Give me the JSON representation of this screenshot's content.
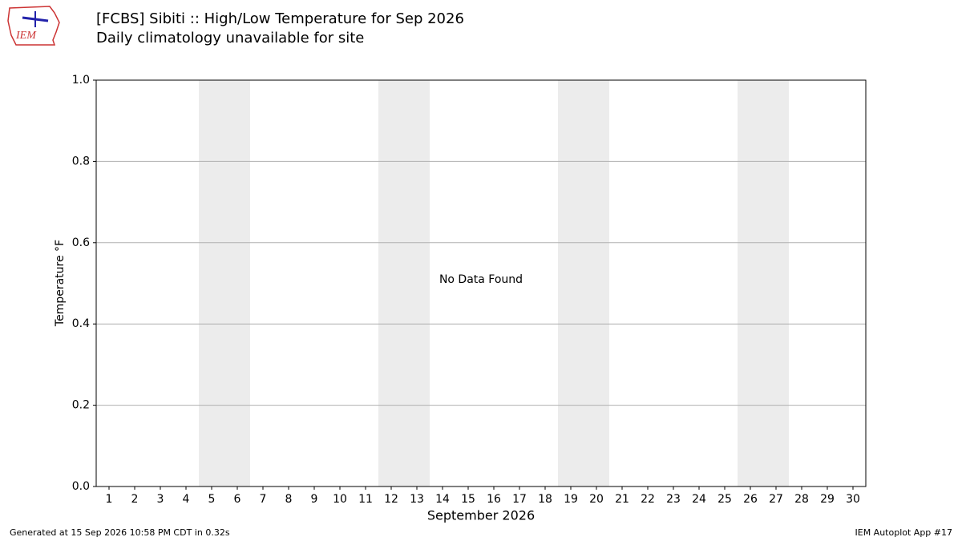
{
  "logo_text": "IEM",
  "chart_data": {
    "type": "line",
    "title": "[FCBS] Sibiti :: High/Low Temperature for Sep 2026",
    "subtitle": "Daily climatology unavailable for site",
    "x_label": "September 2026",
    "y_label": "Temperature °F",
    "annotation": "No Data Found",
    "xlim": [
      0.5,
      30.5
    ],
    "xticks": [
      1,
      2,
      3,
      4,
      5,
      6,
      7,
      8,
      9,
      10,
      11,
      12,
      13,
      14,
      15,
      16,
      17,
      18,
      19,
      20,
      21,
      22,
      23,
      24,
      25,
      26,
      27,
      28,
      29,
      30
    ],
    "ylim": [
      0,
      1
    ],
    "yticks": [
      {
        "value": 0,
        "label": "0.0"
      },
      0.2,
      0.4,
      0.6,
      0.8,
      {
        "value": 1,
        "label": "1.0"
      }
    ],
    "grid": true,
    "shaded_spans": [
      [
        4.5,
        6.5
      ],
      [
        11.5,
        13.5
      ],
      [
        18.5,
        20.5
      ],
      [
        25.5,
        27.5
      ]
    ],
    "shade_color": "#ececec",
    "footer_left": "Generated at 15 Sep 2026 10:58 PM CDT in 0.32s",
    "footer_right": "IEM Autoplot App #17"
  }
}
